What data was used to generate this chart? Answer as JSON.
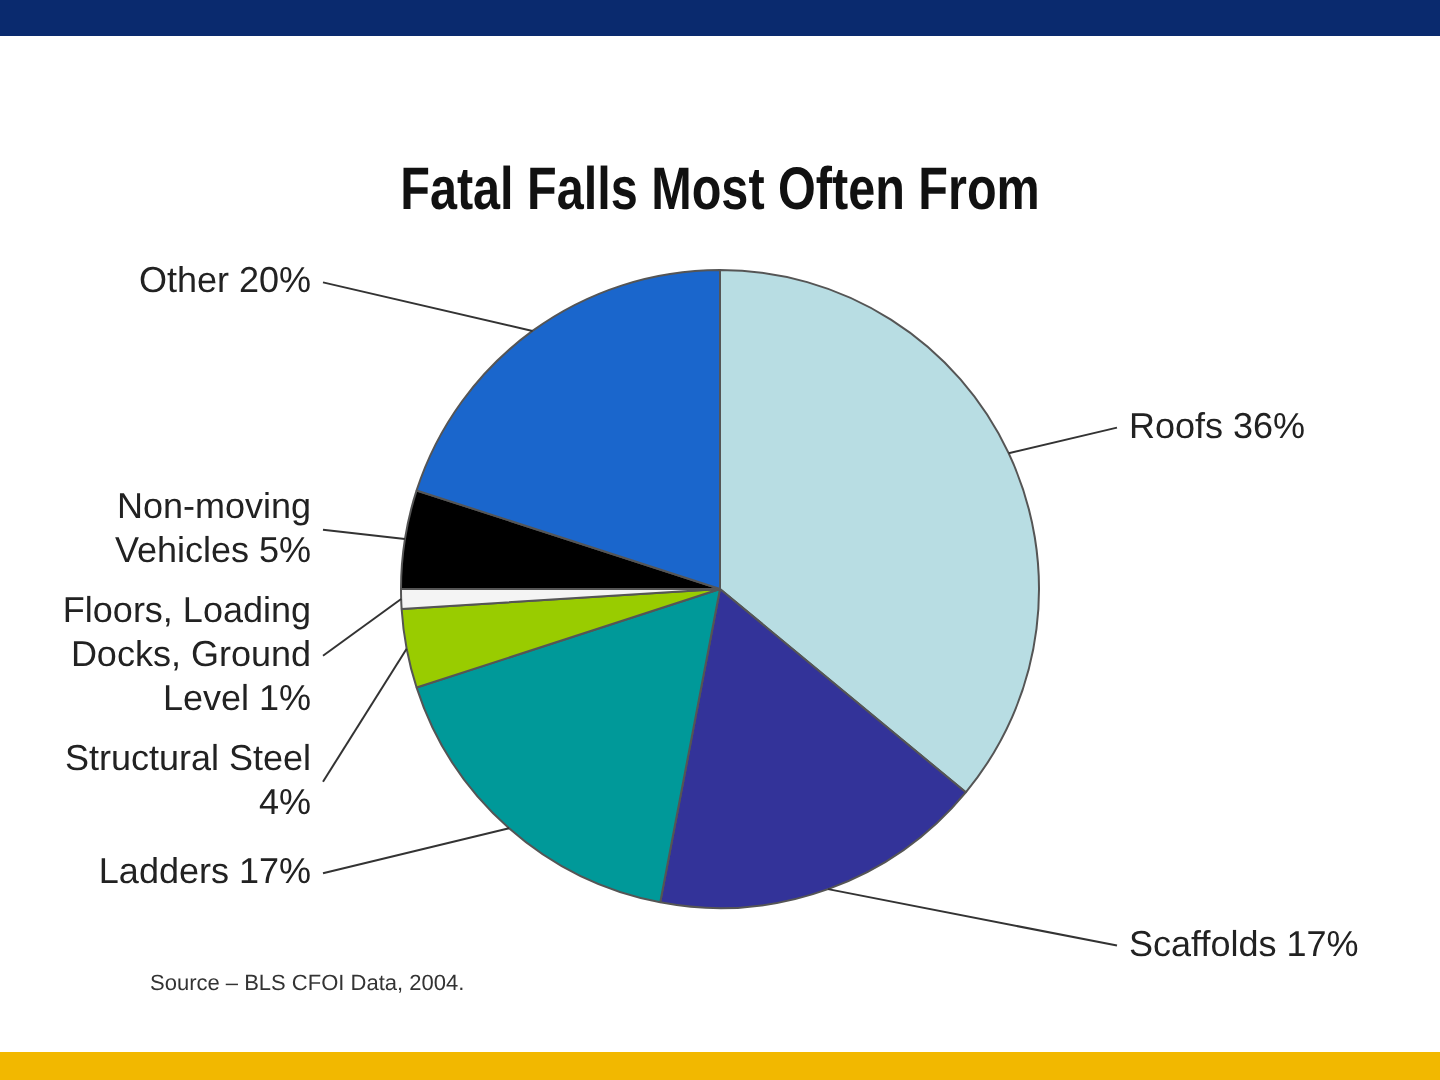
{
  "chart_data": {
    "type": "pie",
    "title": "Fatal Falls Most Often From",
    "categories": [
      "Roofs",
      "Scaffolds",
      "Ladders",
      "Structural Steel",
      "Floors, Loading Docks, Ground Level",
      "Non-moving Vehicles",
      "Other"
    ],
    "values": [
      36,
      17,
      17,
      4,
      1,
      5,
      20
    ],
    "value_labels": [
      "36%",
      "17%",
      "17%",
      "4%",
      "1%",
      "5%",
      "20%"
    ],
    "colors": [
      "#b8dde3",
      "#333399",
      "#009999",
      "#99cc00",
      "#f4f4f4",
      "#000000",
      "#1a66cc"
    ],
    "legend": false,
    "annotations": [
      "Source – BLS CFOI Data, 2004."
    ]
  }
}
